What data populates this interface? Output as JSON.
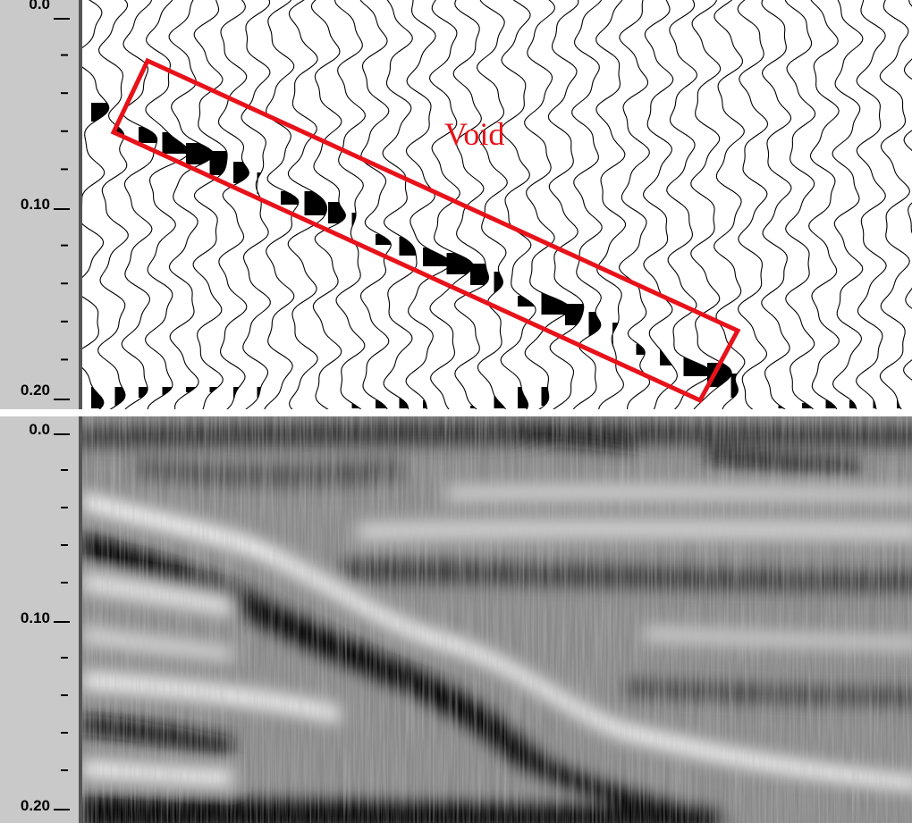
{
  "panels": [
    {
      "axis_labels": [
        "0.0",
        "0.10",
        "0.20"
      ],
      "annotation": "Void"
    },
    {
      "axis_labels": [
        "0.0",
        "0.10",
        "0.20"
      ]
    }
  ]
}
